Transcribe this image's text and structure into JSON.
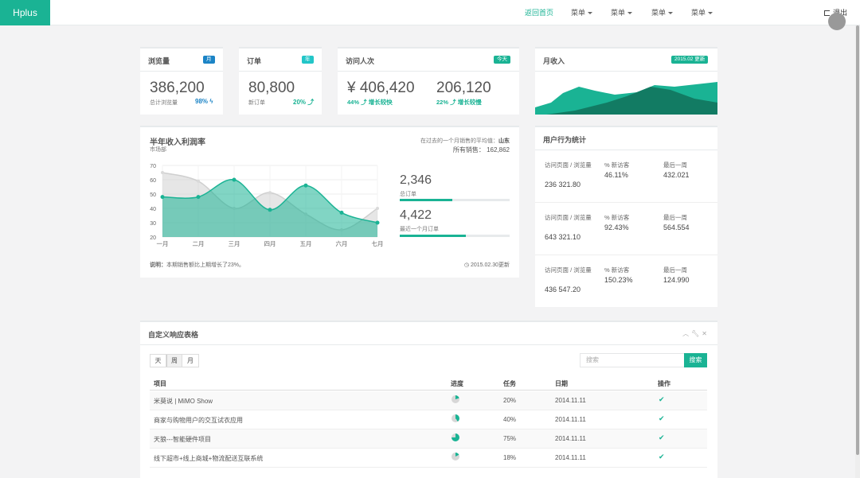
{
  "topbar": {
    "brand": "Hplus",
    "nav": [
      "返回首页",
      "菜单",
      "菜单",
      "菜单",
      "菜单"
    ],
    "logout": "退出"
  },
  "stats": {
    "views": {
      "title": "浏览量",
      "badge": "月",
      "value": "386,200",
      "label": "总计浏览量",
      "pct": "98%"
    },
    "orders": {
      "title": "订单",
      "badge": "年",
      "value": "80,800",
      "label": "新订单",
      "pct": "20%"
    },
    "visits": {
      "title": "访问人次",
      "badge": "今天",
      "value1": "¥ 406,420",
      "pct1": "44%",
      "note1": "增长较快",
      "value2": "206,120",
      "pct2": "22%",
      "note2": "增长较慢"
    },
    "income": {
      "title": "月收入",
      "badge": "2015.02 更新"
    }
  },
  "revenue": {
    "title": "半年收入利润率",
    "subtitle": "市场部",
    "avg_label": "在过去的一个月销售的平均值：",
    "avg_region": "山东",
    "total_label": "所有销售：",
    "total_value": "162,862",
    "footer_note_label": "说明：",
    "footer_note": "本期销售额比上期增长了23%。",
    "footer_date": "2015.02.30更新",
    "kpi1_value": "2,346",
    "kpi1_label": "总订单",
    "kpi1_progress": 0.48,
    "kpi2_value": "4,422",
    "kpi2_label": "最近一个月订单",
    "kpi2_progress": 0.6
  },
  "chart_data": {
    "type": "area",
    "categories": [
      "一月",
      "二月",
      "三月",
      "四月",
      "五月",
      "六月",
      "七月"
    ],
    "ylim": [
      20,
      70
    ],
    "yticks": [
      20,
      30,
      40,
      50,
      60,
      70
    ],
    "series": [
      {
        "values": [
          65,
          59,
          40,
          51,
          36,
          25,
          40
        ],
        "color": "#dadada"
      },
      {
        "values": [
          48,
          48,
          60,
          39,
          56,
          37,
          30
        ],
        "color": "#1ab394"
      }
    ],
    "grid": true
  },
  "user_stats": {
    "title": "用户行为统计",
    "rows": [
      {
        "c1_label": "访问页面 / 浏览量",
        "c1_value": "236 321.80",
        "c2_label": "% 新访客",
        "c2_value": "46.11%",
        "c3_label": "最后一周",
        "c3_value": "432.021"
      },
      {
        "c1_label": "访问页面 / 浏览量",
        "c1_value": "643 321.10",
        "c2_label": "% 新访客",
        "c2_value": "92.43%",
        "c3_label": "最后一周",
        "c3_value": "564.554"
      },
      {
        "c1_label": "访问页面 / 浏览量",
        "c1_value": "436 547.20",
        "c2_label": "% 新访客",
        "c2_value": "150.23%",
        "c3_label": "最后一周",
        "c3_value": "124.990"
      }
    ]
  },
  "table": {
    "title": "自定义响应表格",
    "tabs": [
      "天",
      "周",
      "月"
    ],
    "search_placeholder": "搜索",
    "search_button": "搜索",
    "headers": [
      "项目",
      "进度",
      "任务",
      "日期",
      "操作"
    ],
    "rows": [
      {
        "project": "米莫说 | MiMO Show",
        "progress": 0.2,
        "task": "20%",
        "date": "2014.11.11"
      },
      {
        "project": "商家与购物用户的交互试衣应用",
        "progress": 0.4,
        "task": "40%",
        "date": "2014.11.11"
      },
      {
        "project": "天狼---智能硬件项目",
        "progress": 0.75,
        "task": "75%",
        "date": "2014.11.11"
      },
      {
        "project": "线下超市+线上商城+物流配送互联系统",
        "progress": 0.18,
        "task": "18%",
        "date": "2014.11.11"
      }
    ]
  },
  "colors": {
    "accent": "#1ab394",
    "info": "#23c6c8",
    "primary": "#1c84c6"
  }
}
